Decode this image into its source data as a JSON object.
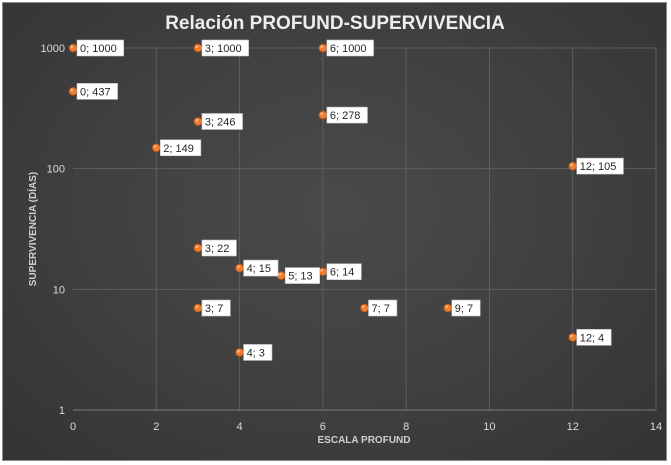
{
  "chart_data": {
    "type": "scatter",
    "title": "Relación PROFUND-SUPERVIVENCIA",
    "xlabel": "ESCALA PROFUND",
    "ylabel": "SUPERVIVENCIA (DÍAS)",
    "xlim": [
      0,
      14
    ],
    "ylim": [
      1,
      1000
    ],
    "y_scale": "log",
    "x_ticks": [
      "0",
      "2",
      "4",
      "6",
      "8",
      "10",
      "12",
      "14"
    ],
    "y_ticks": [
      "1",
      "10",
      "100",
      "1000"
    ],
    "grid": true,
    "marker_color": "#ED7D31",
    "points": [
      {
        "x": 0,
        "y": 1000,
        "label": "0; 1000"
      },
      {
        "x": 3,
        "y": 1000,
        "label": "3; 1000"
      },
      {
        "x": 6,
        "y": 1000,
        "label": "6; 1000"
      },
      {
        "x": 0,
        "y": 437,
        "label": "0; 437"
      },
      {
        "x": 3,
        "y": 246,
        "label": "3; 246"
      },
      {
        "x": 6,
        "y": 278,
        "label": "6; 278"
      },
      {
        "x": 2,
        "y": 149,
        "label": "2; 149"
      },
      {
        "x": 12,
        "y": 105,
        "label": "12; 105"
      },
      {
        "x": 3,
        "y": 22,
        "label": "3; 22"
      },
      {
        "x": 4,
        "y": 15,
        "label": "4; 15"
      },
      {
        "x": 5,
        "y": 13,
        "label": "5; 13"
      },
      {
        "x": 6,
        "y": 14,
        "label": "6; 14"
      },
      {
        "x": 3,
        "y": 7,
        "label": "3; 7"
      },
      {
        "x": 7,
        "y": 7,
        "label": "7; 7"
      },
      {
        "x": 9,
        "y": 7,
        "label": "9; 7"
      },
      {
        "x": 12,
        "y": 4,
        "label": "12; 4"
      },
      {
        "x": 4,
        "y": 3,
        "label": "4; 3"
      }
    ]
  }
}
